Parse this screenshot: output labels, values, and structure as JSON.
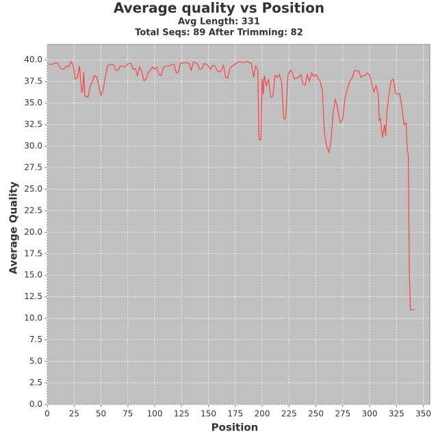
{
  "chart_data": {
    "type": "line",
    "title": "Average quality vs Position",
    "subtitle": [
      "Avg Length: 331",
      "Total Seqs: 89 After Trimming: 82"
    ],
    "x_label": "Position",
    "y_label": "Average Quality",
    "xlim": [
      0,
      356
    ],
    "ylim": [
      0,
      41.8
    ],
    "xticks": [
      0,
      25,
      50,
      75,
      100,
      125,
      150,
      175,
      200,
      225,
      250,
      275,
      300,
      325,
      350
    ],
    "yticks": [
      {
        "value": 0,
        "label": "0.0"
      },
      2.5,
      {
        "value": 5,
        "label": "5.0"
      },
      7.5,
      {
        "value": 10,
        "label": "10.0"
      },
      12.5,
      {
        "value": 15,
        "label": "15.0"
      },
      17.5,
      {
        "value": 20,
        "label": "20.0"
      },
      22.5,
      {
        "value": 25,
        "label": "25.0"
      },
      27.5,
      {
        "value": 30,
        "label": "30.0"
      },
      32.5,
      {
        "value": 35,
        "label": "35.0"
      },
      37.5,
      {
        "value": 40,
        "label": "40.0"
      }
    ],
    "grid": true,
    "x": [
      1,
      5,
      8,
      10,
      12,
      15,
      18,
      20,
      22,
      24,
      26,
      28,
      30,
      32,
      33,
      34,
      35,
      38,
      40,
      42,
      44,
      46,
      48,
      50,
      52,
      54,
      56,
      58,
      62,
      64,
      66,
      68,
      72,
      76,
      78,
      80,
      82,
      84,
      86,
      88,
      90,
      92,
      94,
      96,
      98,
      100,
      102,
      104,
      106,
      108,
      110,
      114,
      116,
      118,
      120,
      122,
      124,
      128,
      132,
      134,
      136,
      140,
      142,
      144,
      146,
      148,
      150,
      152,
      154,
      156,
      158,
      160,
      162,
      164,
      166,
      168,
      170,
      172,
      176,
      178,
      182,
      186,
      190,
      192,
      194,
      196,
      197,
      198,
      199,
      200,
      201,
      202,
      204,
      206,
      208,
      210,
      212,
      214,
      216,
      218,
      220,
      221,
      222,
      224,
      226,
      228,
      230,
      234,
      236,
      238,
      240,
      242,
      244,
      246,
      248,
      250,
      252,
      254,
      256,
      258,
      260,
      262,
      264,
      266,
      268,
      270,
      272,
      273,
      275,
      277,
      278,
      280,
      282,
      284,
      286,
      290,
      292,
      294,
      296,
      298,
      300,
      302,
      304,
      306,
      308,
      309,
      310,
      312,
      314,
      315,
      316,
      318,
      320,
      322,
      324,
      326,
      328,
      330,
      332,
      334,
      335,
      336,
      337,
      338,
      342
    ],
    "series": [
      {
        "name": "Average Quality",
        "color": "#ff4040",
        "values": [
          39.5,
          39.5,
          39.7,
          39.6,
          39.1,
          38.9,
          39.3,
          39.2,
          39.8,
          39.5,
          37.8,
          37.9,
          39.3,
          36.3,
          36.3,
          38.6,
          35.8,
          35.7,
          37.0,
          37.5,
          38.2,
          38.0,
          37.0,
          35.9,
          36.5,
          38.0,
          39.3,
          39.5,
          39.4,
          38.8,
          38.8,
          39.3,
          39.2,
          39.6,
          39.6,
          38.9,
          39.0,
          38.2,
          39.2,
          38.7,
          37.6,
          37.8,
          38.6,
          38.8,
          39.2,
          38.9,
          39.2,
          38.3,
          38.2,
          39.1,
          39.3,
          39.3,
          39.5,
          39.5,
          38.5,
          38.6,
          39.6,
          39.7,
          39.6,
          38.8,
          39.8,
          39.5,
          38.9,
          39.0,
          39.6,
          39.5,
          39.3,
          38.9,
          39.4,
          39.3,
          38.8,
          38.6,
          38.8,
          39.4,
          38.0,
          37.9,
          39.0,
          39.3,
          39.6,
          39.8,
          39.7,
          39.8,
          39.6,
          38.0,
          39.3,
          38.8,
          31.0,
          30.7,
          30.8,
          37.8,
          36.0,
          38.2,
          37.0,
          37.8,
          35.7,
          35.8,
          38.2,
          38.0,
          38.3,
          37.5,
          33.3,
          33.1,
          33.4,
          38.2,
          38.8,
          38.6,
          37.8,
          38.0,
          38.3,
          37.2,
          37.1,
          38.3,
          37.5,
          38.5,
          38.1,
          38.3,
          37.9,
          37.5,
          36.5,
          31.5,
          30.0,
          29.3,
          30.5,
          33.8,
          35.5,
          34.5,
          33.0,
          32.7,
          33.2,
          35.5,
          36.0,
          37.0,
          37.6,
          38.0,
          38.8,
          38.7,
          38.0,
          38.2,
          38.2,
          38.5,
          38.3,
          37.2,
          36.3,
          37.0,
          36.0,
          33.0,
          33.2,
          31.0,
          32.5,
          31.2,
          33.8,
          36.0,
          37.6,
          37.8,
          36.2,
          36.0,
          36.1,
          34.5,
          32.5,
          32.7,
          29.5,
          29.0,
          15.0,
          11.0,
          11.0
        ]
      }
    ]
  }
}
